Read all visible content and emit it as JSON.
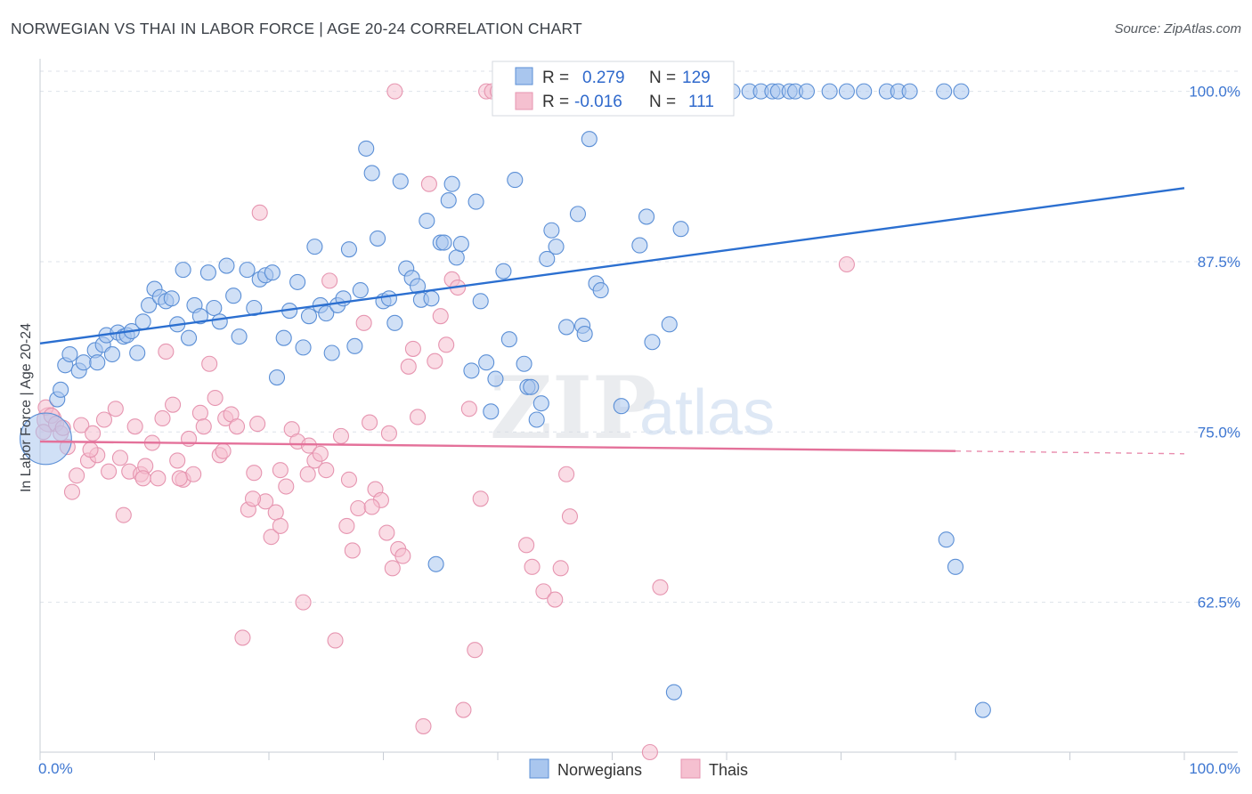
{
  "title": "NORWEGIAN VS THAI IN LABOR FORCE | AGE 20-24 CORRELATION CHART",
  "source": "Source: ZipAtlas.com",
  "watermark": {
    "zip": "ZIP",
    "atlas": "atlas"
  },
  "colors": {
    "norwegians_fill": "#a9c6ee",
    "norwegians_stroke": "#5b8fd6",
    "norwegians_line": "#2b6fd0",
    "thais_fill": "#f5c0d0",
    "thais_stroke": "#e695b0",
    "thais_line": "#e4719a",
    "tick_label": "#3d76d1",
    "grid": "#dde2ea"
  },
  "legend": {
    "rows": [
      {
        "r_label": "R =",
        "r_value": "0.279",
        "n_label": "N =",
        "n_value": "129"
      },
      {
        "r_label": "R =",
        "r_value": "-0.016",
        "n_label": "N =",
        "n_value": "111"
      }
    ]
  },
  "chart_data": {
    "type": "scatter",
    "title": "NORWEGIAN VS THAI IN LABOR FORCE | AGE 20-24 CORRELATION CHART",
    "xlabel": "",
    "ylabel": "In Labor Force | Age 20-24",
    "xlim": [
      0,
      100
    ],
    "ylim": [
      51.5,
      102
    ],
    "x_tick_labels": [
      "0.0%",
      "100.0%"
    ],
    "y_ticks": [
      62.5,
      75.0,
      87.5,
      100.0
    ],
    "y_tick_labels": [
      "62.5%",
      "75.0%",
      "87.5%",
      "100.0%"
    ],
    "grid": true,
    "legend_position": "top-center",
    "series": [
      {
        "name": "Norwegians",
        "trend": {
          "x": [
            0,
            100
          ],
          "y": [
            81.5,
            92.9
          ]
        },
        "points": [
          [
            0.5,
            74.5,
            3.4
          ],
          [
            1.5,
            77.4,
            1
          ],
          [
            1.8,
            78.1,
            1
          ],
          [
            2.2,
            79.9,
            1
          ],
          [
            2.6,
            80.7,
            1
          ],
          [
            3.4,
            79.5,
            1
          ],
          [
            3.8,
            80.1,
            1
          ],
          [
            4.8,
            81.0,
            1
          ],
          [
            5.0,
            80.1,
            1
          ],
          [
            5.5,
            81.4,
            1
          ],
          [
            5.8,
            82.1,
            1
          ],
          [
            6.3,
            80.7,
            1
          ],
          [
            6.8,
            82.3,
            1
          ],
          [
            7.3,
            82.0,
            1
          ],
          [
            7.6,
            82.1,
            1
          ],
          [
            8.0,
            82.4,
            1
          ],
          [
            8.5,
            80.8,
            1
          ],
          [
            9.0,
            83.1,
            1
          ],
          [
            9.5,
            84.3,
            1
          ],
          [
            10.0,
            85.5,
            1
          ],
          [
            10.5,
            84.9,
            1
          ],
          [
            11.0,
            84.6,
            1
          ],
          [
            11.5,
            84.8,
            1
          ],
          [
            12.0,
            82.9,
            1
          ],
          [
            12.5,
            86.9,
            1
          ],
          [
            13.0,
            81.9,
            1
          ],
          [
            13.5,
            84.3,
            1
          ],
          [
            14.0,
            83.5,
            1
          ],
          [
            14.7,
            86.7,
            1
          ],
          [
            15.2,
            84.1,
            1
          ],
          [
            15.7,
            83.1,
            1
          ],
          [
            16.3,
            87.2,
            1
          ],
          [
            16.9,
            85.0,
            1
          ],
          [
            17.4,
            82.0,
            1
          ],
          [
            18.1,
            86.9,
            1
          ],
          [
            18.7,
            84.1,
            1
          ],
          [
            19.2,
            86.2,
            1
          ],
          [
            19.7,
            86.5,
            1
          ],
          [
            20.3,
            86.7,
            1
          ],
          [
            20.7,
            79.0,
            1
          ],
          [
            21.3,
            81.9,
            1
          ],
          [
            21.8,
            83.9,
            1
          ],
          [
            22.5,
            86.0,
            1
          ],
          [
            23.0,
            81.2,
            1
          ],
          [
            23.5,
            83.5,
            1
          ],
          [
            24.0,
            88.6,
            1
          ],
          [
            24.5,
            84.3,
            1
          ],
          [
            25.0,
            83.7,
            1
          ],
          [
            25.5,
            80.8,
            1
          ],
          [
            26.0,
            84.3,
            1
          ],
          [
            26.5,
            84.8,
            1
          ],
          [
            27.0,
            88.4,
            1
          ],
          [
            27.5,
            81.3,
            1
          ],
          [
            28.0,
            85.4,
            1
          ],
          [
            28.5,
            95.8,
            1
          ],
          [
            29.0,
            94.0,
            1
          ],
          [
            29.5,
            89.2,
            1
          ],
          [
            30.0,
            84.6,
            1
          ],
          [
            30.5,
            84.8,
            1
          ],
          [
            31.0,
            83.0,
            1
          ],
          [
            31.5,
            93.4,
            1
          ],
          [
            32.0,
            87.0,
            1
          ],
          [
            32.5,
            86.3,
            1
          ],
          [
            33.0,
            85.7,
            1
          ],
          [
            33.3,
            84.7,
            1
          ],
          [
            33.8,
            90.5,
            1
          ],
          [
            34.2,
            84.8,
            1
          ],
          [
            34.6,
            65.3,
            1
          ],
          [
            35.0,
            88.9,
            1
          ],
          [
            35.3,
            88.9,
            1
          ],
          [
            35.7,
            92.0,
            1
          ],
          [
            36.0,
            93.2,
            1
          ],
          [
            36.4,
            87.8,
            1
          ],
          [
            36.8,
            88.8,
            1
          ],
          [
            37.7,
            79.5,
            1
          ],
          [
            38.1,
            91.9,
            1
          ],
          [
            38.5,
            84.6,
            1
          ],
          [
            39.0,
            80.1,
            1
          ],
          [
            39.4,
            76.5,
            1
          ],
          [
            39.8,
            78.9,
            1
          ],
          [
            40.5,
            86.8,
            1
          ],
          [
            41.0,
            81.8,
            1
          ],
          [
            41.5,
            93.5,
            1
          ],
          [
            42.3,
            80.0,
            1
          ],
          [
            42.6,
            78.3,
            1
          ],
          [
            42.9,
            78.3,
            1
          ],
          [
            43.4,
            75.9,
            1
          ],
          [
            43.8,
            77.1,
            1
          ],
          [
            44.3,
            87.7,
            1
          ],
          [
            44.7,
            89.8,
            1
          ],
          [
            45.1,
            88.6,
            1
          ],
          [
            46.0,
            82.7,
            1
          ],
          [
            47.0,
            91.0,
            1
          ],
          [
            47.4,
            82.8,
            1
          ],
          [
            47.6,
            82.2,
            1
          ],
          [
            48.0,
            96.5,
            1
          ],
          [
            48.6,
            85.9,
            1
          ],
          [
            49.0,
            85.4,
            1
          ],
          [
            50.8,
            76.9,
            1
          ],
          [
            52.4,
            88.7,
            1
          ],
          [
            53.0,
            90.8,
            1
          ],
          [
            53.5,
            81.6,
            1
          ],
          [
            55.0,
            82.9,
            1
          ],
          [
            55.4,
            55.9,
            1
          ],
          [
            56.0,
            89.9,
            1
          ],
          [
            57.0,
            99.9,
            1
          ],
          [
            57.5,
            100.0,
            1
          ],
          [
            58.5,
            100.0,
            1
          ],
          [
            59.0,
            100.0,
            1
          ],
          [
            59.5,
            100.0,
            1
          ],
          [
            60.5,
            100.0,
            1
          ],
          [
            62.0,
            100.0,
            1
          ],
          [
            63.0,
            100.0,
            1
          ],
          [
            64.0,
            100.0,
            1
          ],
          [
            64.5,
            100.0,
            1
          ],
          [
            65.5,
            100.0,
            1
          ],
          [
            66.0,
            100.0,
            1
          ],
          [
            67.0,
            100.0,
            1
          ],
          [
            69.0,
            100.0,
            1
          ],
          [
            70.5,
            100.0,
            1
          ],
          [
            72.0,
            100.0,
            1
          ],
          [
            74.0,
            100.0,
            1
          ],
          [
            75.0,
            100.0,
            1
          ],
          [
            76.0,
            100.0,
            1
          ],
          [
            79.0,
            100.0,
            1
          ],
          [
            79.2,
            67.1,
            1
          ],
          [
            80.5,
            100.0,
            1
          ],
          [
            80.0,
            65.1,
            1
          ],
          [
            82.4,
            54.6,
            1
          ]
        ]
      },
      {
        "name": "Thais",
        "trend": {
          "x": [
            0,
            80
          ],
          "y": [
            74.3,
            73.6
          ]
        },
        "trend_dashed": {
          "x": [
            80,
            100
          ],
          "y": [
            73.6,
            73.4
          ]
        },
        "points": [
          [
            0.8,
            75.9,
            1.6
          ],
          [
            0.3,
            75.0,
            1
          ],
          [
            0.5,
            76.8,
            1
          ],
          [
            1.0,
            76.2,
            1
          ],
          [
            1.4,
            75.6,
            1
          ],
          [
            1.8,
            74.9,
            1
          ],
          [
            2.4,
            73.9,
            1
          ],
          [
            2.8,
            70.6,
            1
          ],
          [
            3.2,
            71.8,
            1
          ],
          [
            3.6,
            75.5,
            1
          ],
          [
            4.2,
            72.9,
            1
          ],
          [
            4.6,
            74.9,
            1
          ],
          [
            5.0,
            73.3,
            1
          ],
          [
            5.6,
            75.9,
            1
          ],
          [
            6.0,
            72.1,
            1
          ],
          [
            6.6,
            76.7,
            1
          ],
          [
            7.3,
            68.9,
            1
          ],
          [
            7.8,
            72.1,
            1
          ],
          [
            8.3,
            75.4,
            1
          ],
          [
            8.8,
            71.9,
            1
          ],
          [
            9.2,
            72.5,
            1
          ],
          [
            9.8,
            74.2,
            1
          ],
          [
            10.3,
            71.6,
            1
          ],
          [
            10.7,
            76.0,
            1
          ],
          [
            11.0,
            80.9,
            1
          ],
          [
            11.6,
            77.0,
            1
          ],
          [
            12.0,
            72.9,
            1
          ],
          [
            12.5,
            71.5,
            1
          ],
          [
            13.0,
            74.5,
            1
          ],
          [
            13.4,
            71.9,
            1
          ],
          [
            14.0,
            76.4,
            1
          ],
          [
            14.3,
            75.4,
            1
          ],
          [
            14.8,
            80.0,
            1
          ],
          [
            15.3,
            77.5,
            1
          ],
          [
            15.7,
            73.3,
            1
          ],
          [
            16.2,
            76.0,
            1
          ],
          [
            16.7,
            76.3,
            1
          ],
          [
            17.2,
            75.4,
            1
          ],
          [
            17.7,
            59.9,
            1
          ],
          [
            18.2,
            69.3,
            1
          ],
          [
            18.7,
            72.0,
            1
          ],
          [
            19.2,
            91.1,
            1
          ],
          [
            19.7,
            69.9,
            1
          ],
          [
            20.2,
            67.3,
            1
          ],
          [
            20.6,
            69.1,
            1
          ],
          [
            21.0,
            68.1,
            1
          ],
          [
            21.5,
            71.0,
            1
          ],
          [
            22.0,
            75.2,
            1
          ],
          [
            22.5,
            74.3,
            1
          ],
          [
            23.0,
            62.5,
            1
          ],
          [
            23.5,
            74.0,
            1
          ],
          [
            24.0,
            72.9,
            1
          ],
          [
            24.5,
            73.4,
            1
          ],
          [
            25.0,
            72.2,
            1
          ],
          [
            25.3,
            86.1,
            1
          ],
          [
            25.8,
            59.7,
            1
          ],
          [
            26.3,
            74.7,
            1
          ],
          [
            26.8,
            68.1,
            1
          ],
          [
            27.3,
            66.3,
            1
          ],
          [
            27.8,
            69.4,
            1
          ],
          [
            28.3,
            83.0,
            1
          ],
          [
            28.8,
            75.7,
            1
          ],
          [
            29.3,
            70.8,
            1
          ],
          [
            29.8,
            70.0,
            1
          ],
          [
            30.3,
            67.6,
            1
          ],
          [
            30.8,
            65.0,
            1
          ],
          [
            31.3,
            66.4,
            1
          ],
          [
            31.7,
            65.9,
            1
          ],
          [
            32.2,
            79.8,
            1
          ],
          [
            32.6,
            81.1,
            1
          ],
          [
            33.0,
            76.1,
            1
          ],
          [
            33.5,
            53.4,
            1
          ],
          [
            34.0,
            93.2,
            1
          ],
          [
            34.5,
            80.2,
            1
          ],
          [
            35.0,
            83.5,
            1
          ],
          [
            35.5,
            81.4,
            1
          ],
          [
            36.0,
            86.2,
            1
          ],
          [
            36.5,
            85.6,
            1
          ],
          [
            37.0,
            54.6,
            1
          ],
          [
            37.5,
            76.7,
            1
          ],
          [
            38.0,
            59.0,
            1
          ],
          [
            38.5,
            70.1,
            1
          ],
          [
            39.0,
            100.0,
            1
          ],
          [
            39.5,
            100.0,
            1
          ],
          [
            40.0,
            100.0,
            1
          ],
          [
            40.5,
            100.0,
            1
          ],
          [
            41.0,
            100.0,
            1
          ],
          [
            42.5,
            66.7,
            1
          ],
          [
            43.0,
            65.1,
            1
          ],
          [
            44.0,
            63.3,
            1
          ],
          [
            45.0,
            62.7,
            1
          ],
          [
            45.5,
            65.0,
            1
          ],
          [
            46.0,
            71.9,
            1
          ],
          [
            46.3,
            68.8,
            1
          ],
          [
            18.6,
            70.1,
            1
          ],
          [
            31.0,
            100.0,
            1
          ],
          [
            53.3,
            51.5,
            1
          ],
          [
            54.2,
            63.6,
            1
          ],
          [
            70.5,
            87.3,
            1
          ],
          [
            12.2,
            71.6,
            1
          ],
          [
            4.4,
            73.7,
            1
          ],
          [
            7.0,
            73.1,
            1
          ],
          [
            9.0,
            71.6,
            1
          ],
          [
            16.0,
            73.6,
            1
          ],
          [
            19.0,
            75.6,
            1
          ],
          [
            21.0,
            72.2,
            1
          ],
          [
            23.4,
            71.9,
            1
          ],
          [
            27.0,
            71.5,
            1
          ],
          [
            29.0,
            69.5,
            1
          ],
          [
            30.5,
            74.9,
            1
          ],
          [
            2.0,
            75.3,
            1
          ]
        ]
      }
    ]
  },
  "bottom_legend": [
    "Norwegians",
    "Thais"
  ]
}
